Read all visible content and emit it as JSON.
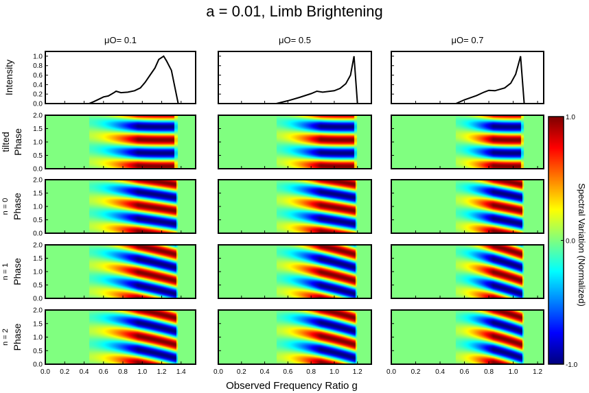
{
  "figure": {
    "title": "a = 0.01, Limb Brightening",
    "xlabel": "Observed Frequency Ratio g",
    "colorbar": {
      "label": "Spectral Variation (Normalized)",
      "ticks": [
        "1.0",
        "0.0",
        "-1.0"
      ],
      "range": [
        -1.0,
        1.0
      ],
      "colormap": "jet"
    }
  },
  "chart_data": {
    "type": "heatmap",
    "columns": [
      {
        "heading": "μO= 0.1",
        "xticks": [
          "0.0",
          "0.2",
          "0.4",
          "0.6",
          "0.8",
          "1.0",
          "1.2",
          "1.4"
        ],
        "xlim": [
          0.0,
          1.55
        ],
        "g_min": 0.45,
        "g_peak": 1.22,
        "g_max": 1.37
      },
      {
        "heading": "μO= 0.5",
        "xticks": [
          "0.0",
          "0.2",
          "0.4",
          "0.6",
          "0.8",
          "1.0",
          "1.2"
        ],
        "xlim": [
          0.0,
          1.32
        ],
        "g_min": 0.5,
        "g_peak": 1.17,
        "g_max": 1.2
      },
      {
        "heading": "μO= 0.7",
        "xticks": [
          "0.0",
          "0.2",
          "0.4",
          "0.6",
          "0.8",
          "1.0",
          "1.2"
        ],
        "xlim": [
          0.0,
          1.25
        ],
        "g_min": 0.53,
        "g_peak": 1.06,
        "g_max": 1.09
      }
    ],
    "rows": [
      {
        "kind": "line",
        "ylabel": "Intensity",
        "yticks": [
          "0.0",
          "0.2",
          "0.4",
          "0.6",
          "0.8",
          "1.0"
        ],
        "ylim": [
          0.0,
          1.1
        ]
      },
      {
        "kind": "heatmap",
        "ylabel": "Phase",
        "ylabel2": "tilted",
        "yticks": [
          "0.0",
          "0.5",
          "1.0",
          "1.5",
          "2.0"
        ],
        "ylim": [
          0.0,
          2.0
        ]
      },
      {
        "kind": "heatmap",
        "ylabel": "Phase",
        "ylabel2": "n = 0",
        "yticks": [
          "0.0",
          "0.5",
          "1.0",
          "1.5",
          "2.0"
        ],
        "ylim": [
          0.0,
          2.0
        ]
      },
      {
        "kind": "heatmap",
        "ylabel": "Phase",
        "ylabel2": "n = 1",
        "yticks": [
          "0.0",
          "0.5",
          "1.0",
          "1.5",
          "2.0"
        ],
        "ylim": [
          0.0,
          2.0
        ]
      },
      {
        "kind": "heatmap",
        "ylabel": "Phase",
        "ylabel2": "n = 2",
        "yticks": [
          "0.0",
          "0.5",
          "1.0",
          "1.5",
          "2.0"
        ],
        "ylim": [
          0.0,
          2.0
        ]
      }
    ],
    "intensity_series": [
      {
        "x": [
          0.0,
          0.45,
          0.5,
          0.55,
          0.6,
          0.65,
          0.7,
          0.73,
          0.78,
          0.85,
          0.92,
          0.98,
          1.03,
          1.08,
          1.13,
          1.17,
          1.22,
          1.25,
          1.3,
          1.37
        ],
        "y": [
          0.0,
          0.0,
          0.04,
          0.09,
          0.14,
          0.16,
          0.22,
          0.26,
          0.23,
          0.24,
          0.27,
          0.33,
          0.45,
          0.6,
          0.75,
          0.93,
          1.0,
          0.9,
          0.7,
          0.0
        ]
      },
      {
        "x": [
          0.0,
          0.5,
          0.6,
          0.7,
          0.8,
          0.85,
          0.9,
          1.0,
          1.05,
          1.1,
          1.14,
          1.17,
          1.2
        ],
        "y": [
          0.0,
          0.0,
          0.06,
          0.13,
          0.21,
          0.26,
          0.24,
          0.27,
          0.32,
          0.42,
          0.6,
          1.0,
          0.0
        ]
      },
      {
        "x": [
          0.0,
          0.53,
          0.6,
          0.7,
          0.76,
          0.8,
          0.85,
          0.93,
          0.98,
          1.02,
          1.05,
          1.06,
          1.09
        ],
        "y": [
          0.0,
          0.0,
          0.08,
          0.17,
          0.24,
          0.28,
          0.27,
          0.33,
          0.43,
          0.62,
          0.9,
          1.0,
          0.0
        ]
      }
    ],
    "heatmap_modes": [
      {
        "row": "tilted",
        "frequency": 2,
        "tilt": 0.55,
        "asymmetry": 0.25,
        "edge_cut": 0.96
      },
      {
        "row": "n = 0",
        "frequency": 2,
        "tilt": 1.35,
        "asymmetry": 0.05,
        "edge_cut": 0.98
      },
      {
        "row": "n = 1",
        "frequency": 2,
        "tilt": 1.95,
        "asymmetry": 0.0,
        "edge_cut": 0.98
      },
      {
        "row": "n = 2",
        "frequency": 2,
        "tilt": 1.75,
        "asymmetry": -0.1,
        "edge_cut": 0.98
      }
    ]
  }
}
